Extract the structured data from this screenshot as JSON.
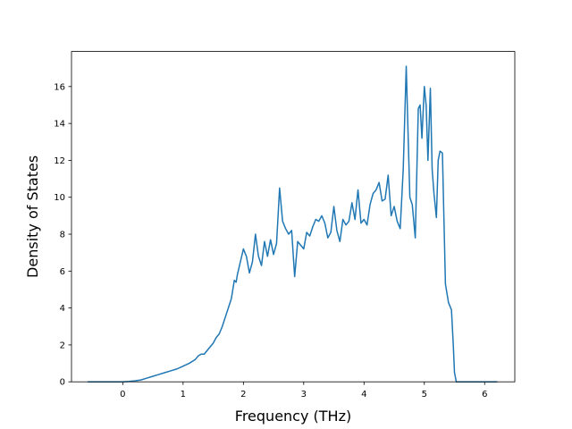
{
  "chart_data": {
    "type": "line",
    "title": "",
    "xlabel": "Frequency (THz)",
    "ylabel": "Density of States",
    "xlim": [
      -0.85,
      6.5
    ],
    "ylim": [
      0,
      17.9
    ],
    "xticks": [
      0,
      1,
      2,
      3,
      4,
      5,
      6
    ],
    "yticks": [
      0,
      2,
      4,
      6,
      8,
      10,
      12,
      14,
      16
    ],
    "grid": false,
    "legend": "none",
    "series": [
      {
        "color": "#1f77b4",
        "x": [
          -0.57,
          -0.4,
          -0.2,
          0.0,
          0.1,
          0.2,
          0.3,
          0.4,
          0.5,
          0.6,
          0.7,
          0.8,
          0.9,
          1.0,
          1.1,
          1.2,
          1.25,
          1.3,
          1.35,
          1.4,
          1.45,
          1.5,
          1.55,
          1.6,
          1.65,
          1.7,
          1.75,
          1.8,
          1.85,
          1.88,
          1.9,
          1.95,
          2.0,
          2.05,
          2.1,
          2.15,
          2.2,
          2.25,
          2.3,
          2.35,
          2.4,
          2.45,
          2.5,
          2.55,
          2.6,
          2.65,
          2.7,
          2.75,
          2.8,
          2.85,
          2.9,
          2.95,
          3.0,
          3.05,
          3.1,
          3.15,
          3.2,
          3.25,
          3.3,
          3.35,
          3.4,
          3.45,
          3.5,
          3.55,
          3.6,
          3.65,
          3.7,
          3.75,
          3.8,
          3.85,
          3.9,
          3.95,
          4.0,
          4.05,
          4.1,
          4.15,
          4.2,
          4.25,
          4.3,
          4.35,
          4.4,
          4.45,
          4.5,
          4.55,
          4.6,
          4.65,
          4.7,
          4.73,
          4.76,
          4.8,
          4.85,
          4.9,
          4.93,
          4.96,
          5.0,
          5.03,
          5.06,
          5.1,
          5.13,
          5.16,
          5.2,
          5.23,
          5.26,
          5.3,
          5.35,
          5.4,
          5.45,
          5.48,
          5.5,
          5.53,
          5.56,
          5.6,
          5.63,
          5.66,
          5.7,
          5.8,
          6.0,
          6.2
        ],
        "y": [
          0,
          0,
          0,
          0,
          0.02,
          0.05,
          0.1,
          0.2,
          0.3,
          0.4,
          0.5,
          0.6,
          0.7,
          0.85,
          1.0,
          1.2,
          1.4,
          1.5,
          1.5,
          1.7,
          1.9,
          2.1,
          2.4,
          2.6,
          3.0,
          3.5,
          4.0,
          4.5,
          5.5,
          5.4,
          5.8,
          6.5,
          7.2,
          6.8,
          5.9,
          6.5,
          8.0,
          6.8,
          6.3,
          7.6,
          6.8,
          7.7,
          6.9,
          7.5,
          10.5,
          8.7,
          8.3,
          8.0,
          8.2,
          5.7,
          7.6,
          7.4,
          7.2,
          8.1,
          7.9,
          8.4,
          8.8,
          8.7,
          9.0,
          8.6,
          7.8,
          8.1,
          9.5,
          8.2,
          7.6,
          8.8,
          8.5,
          8.7,
          9.7,
          8.8,
          10.4,
          8.6,
          8.8,
          8.5,
          9.6,
          10.2,
          10.4,
          10.8,
          9.8,
          9.9,
          11.2,
          9.0,
          9.5,
          8.7,
          8.3,
          11.5,
          17.1,
          13.5,
          10.0,
          9.6,
          7.8,
          14.8,
          15.0,
          13.2,
          16.0,
          15.0,
          12.0,
          15.9,
          11.5,
          10.2,
          8.9,
          12.0,
          12.5,
          12.4,
          5.3,
          4.3,
          3.9,
          2.0,
          0.5,
          0,
          0,
          0,
          0,
          0,
          0,
          0,
          0,
          0
        ]
      }
    ]
  }
}
